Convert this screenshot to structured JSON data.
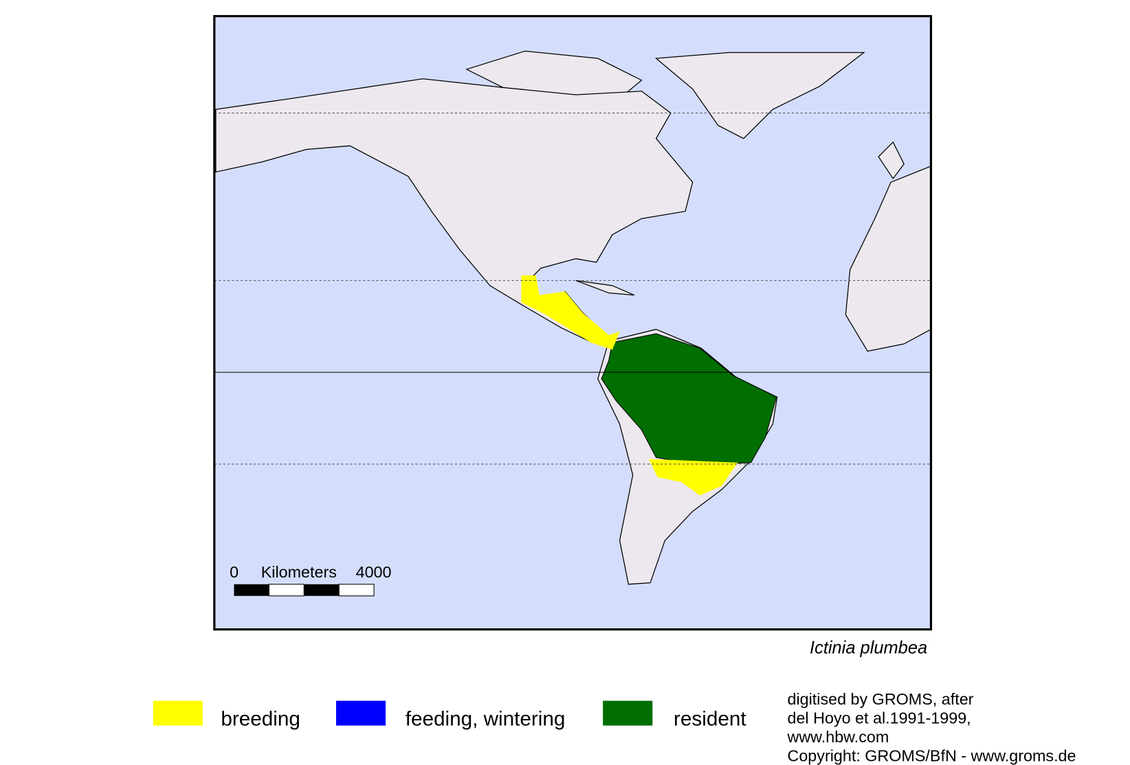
{
  "map": {
    "scale_bar": {
      "start": "0",
      "unit": "Kilometers",
      "end": "4000"
    },
    "species": "Ictinia plumbea",
    "legend": [
      {
        "label": "breeding",
        "color": "#ffff00"
      },
      {
        "label": "feeding, wintering",
        "color": "#0000ff"
      },
      {
        "label": "resident",
        "color": "#006e00"
      }
    ],
    "credits": [
      "digitised by GROMS, after",
      "del Hoyo et al.1991-1999,",
      "www.hbw.com",
      "Copyright: GROMS/BfN - www.groms.de"
    ]
  }
}
